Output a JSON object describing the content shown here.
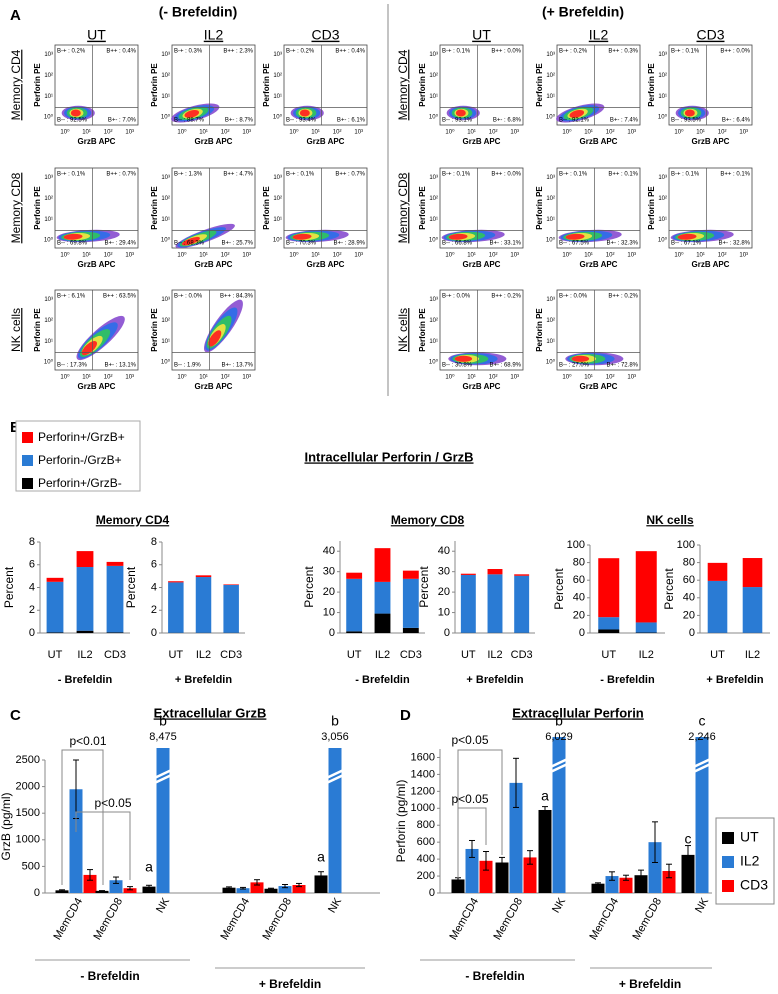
{
  "panel_a": {
    "label": "A",
    "conditions": [
      "(- Brefeldin)",
      "(+ Brefeldin)"
    ],
    "columns": [
      "UT",
      "IL2",
      "CD3"
    ],
    "rows": [
      "Memory CD4",
      "Memory CD8",
      "NK cells"
    ],
    "x_axis_label": "GrzB APC",
    "y_axis_label": "Perforin PE",
    "axis_ticks": [
      "10⁰",
      "10¹",
      "10²",
      "10³"
    ],
    "plots": [
      [
        [
          [
            "B-+ : 0.2%",
            "B++ : 0.4%",
            "B-- : 92.5%",
            "B+- : 7.0%"
          ],
          [
            "B-+ : 0.3%",
            "B++ : 2.3%",
            "B-- : 88.7%",
            "B+- : 8.7%"
          ],
          [
            "B-+ : 0.2%",
            "B++ : 0.4%",
            "B-- : 93.4%",
            "B+- : 6.1%"
          ]
        ],
        [
          [
            "B-+ : 0.1%",
            "B++ : 0.7%",
            "B-- : 69.8%",
            "B+- : 29.4%"
          ],
          [
            "B-+ : 1.3%",
            "B++ : 4.7%",
            "B-- : 68.3%",
            "B+- : 25.7%"
          ],
          [
            "B-+ : 0.1%",
            "B++ : 0.7%",
            "B-- : 70.3%",
            "B+- : 28.9%"
          ]
        ],
        [
          [
            "B-+ : 6.1%",
            "B++ : 63.5%",
            "B-- : 17.3%",
            "B+- : 13.1%"
          ],
          [
            "B-+ : 0.0%",
            "B++ : 84.3%",
            "B-- : 1.9%",
            "B+- : 13.7%"
          ]
        ]
      ],
      [
        [
          [
            "B-+ : 0.1%",
            "B++ : 0.0%",
            "B-- : 93.1%",
            "B+- : 6.8%"
          ],
          [
            "B-+ : 0.2%",
            "B++ : 0.3%",
            "B-- : 92.1%",
            "B+- : 7.4%"
          ],
          [
            "B-+ : 0.1%",
            "B++ : 0.0%",
            "B-- : 93.5%",
            "B+- : 6.4%"
          ]
        ],
        [
          [
            "B-+ : 0.1%",
            "B++ : 0.0%",
            "B-- : 66.8%",
            "B+- : 33.1%"
          ],
          [
            "B-+ : 0.1%",
            "B++ : 0.1%",
            "B-- : 67.5%",
            "B+- : 32.3%"
          ],
          [
            "B-+ : 0.1%",
            "B++ : 0.1%",
            "B-- : 67.1%",
            "B+- : 32.8%"
          ]
        ],
        [
          [
            "B-+ : 0.0%",
            "B++ : 0.2%",
            "B-- : 30.8%",
            "B+- : 68.9%"
          ],
          [
            "B-+ : 0.0%",
            "B++ : 0.2%",
            "B-- : 27.0%",
            "B+- : 72.8%"
          ]
        ]
      ]
    ]
  },
  "panel_b": {
    "label": "B",
    "title": "Intracellular Perforin / GrzB"
  },
  "chart_data": [
    {
      "type": "stacked_bar",
      "title": "Memory CD4",
      "categories": [
        "UT",
        "IL2",
        "CD3"
      ],
      "xlabel": "- Brefeldin",
      "ylabel": "Percent",
      "ylim": [
        0,
        8
      ],
      "yticks": [
        0,
        2,
        4,
        6,
        8
      ],
      "series": [
        {
          "name": "Perforin+/GrzB-",
          "color": "#000000",
          "values": [
            0.05,
            0.2,
            0.05
          ]
        },
        {
          "name": "Perforin-/GrzB+",
          "color": "#2a7bd4",
          "values": [
            4.45,
            5.6,
            5.85
          ]
        },
        {
          "name": "Perforin+/GrzB+",
          "color": "#ff0000",
          "values": [
            0.35,
            1.4,
            0.35
          ]
        }
      ]
    },
    {
      "type": "stacked_bar",
      "categories": [
        "UT",
        "IL2",
        "CD3"
      ],
      "xlabel": "+ Brefeldin",
      "ylabel": "Percent",
      "ylim": [
        0,
        8
      ],
      "yticks": [
        0,
        2,
        4,
        6,
        8
      ],
      "series": [
        {
          "color": "#000000",
          "values": [
            0.02,
            0.02,
            0.02
          ]
        },
        {
          "color": "#2a7bd4",
          "values": [
            4.43,
            4.9,
            4.2
          ]
        },
        {
          "color": "#ff0000",
          "values": [
            0.1,
            0.15,
            0.05
          ]
        }
      ]
    },
    {
      "type": "stacked_bar",
      "title": "Memory CD8",
      "categories": [
        "UT",
        "IL2",
        "CD3"
      ],
      "xlabel": "- Brefeldin",
      "ylabel": "Percent",
      "ylim": [
        0,
        45
      ],
      "yticks": [
        0,
        10,
        20,
        30,
        40
      ],
      "series": [
        {
          "color": "#000000",
          "values": [
            0.8,
            9.5,
            2.5
          ]
        },
        {
          "color": "#2a7bd4",
          "values": [
            25.7,
            15.5,
            24
          ]
        },
        {
          "color": "#ff0000",
          "values": [
            3,
            16.5,
            4
          ]
        }
      ]
    },
    {
      "type": "stacked_bar",
      "categories": [
        "UT",
        "IL2",
        "CD3"
      ],
      "xlabel": "+ Brefeldin",
      "ylabel": "Percent",
      "ylim": [
        0,
        45
      ],
      "yticks": [
        0,
        10,
        20,
        30,
        40
      ],
      "series": [
        {
          "color": "#000000",
          "values": [
            0.1,
            0.1,
            0.1
          ]
        },
        {
          "color": "#2a7bd4",
          "values": [
            28.3,
            28.6,
            27.9
          ]
        },
        {
          "color": "#ff0000",
          "values": [
            0.6,
            2.6,
            0.7
          ]
        }
      ]
    },
    {
      "type": "stacked_bar",
      "title": "NK cells",
      "categories": [
        "UT",
        "IL2"
      ],
      "xlabel": "- Brefeldin",
      "ylabel": "Percent",
      "ylim": [
        0,
        100
      ],
      "yticks": [
        0,
        20,
        40,
        60,
        80,
        100
      ],
      "series": [
        {
          "color": "#000000",
          "values": [
            4,
            0.5
          ]
        },
        {
          "color": "#2a7bd4",
          "values": [
            14,
            11.5
          ]
        },
        {
          "color": "#ff0000",
          "values": [
            67,
            81
          ]
        }
      ]
    },
    {
      "type": "stacked_bar",
      "categories": [
        "UT",
        "IL2"
      ],
      "xlabel": "+ Brefeldin",
      "ylabel": "Percent",
      "ylim": [
        0,
        100
      ],
      "yticks": [
        0,
        20,
        40,
        60,
        80,
        100
      ],
      "series": [
        {
          "color": "#000000",
          "values": [
            0.2,
            0.2
          ]
        },
        {
          "color": "#2a7bd4",
          "values": [
            59,
            52
          ]
        },
        {
          "color": "#ff0000",
          "values": [
            20.5,
            33
          ]
        }
      ]
    },
    {
      "type": "grouped_bar",
      "panel": "C",
      "title": "Extracellular GrzB",
      "ylabel": "GrzB (pg/ml)",
      "categories": [
        "MemCD4",
        "MemCD8",
        "NK",
        "MemCD4",
        "MemCD8",
        "NK"
      ],
      "groups": [
        "- Brefeldin",
        "+ Brefeldin"
      ],
      "ylim": [
        0,
        2500
      ],
      "yticks": [
        0,
        500,
        1000,
        1500,
        2000,
        2500
      ],
      "series": [
        {
          "color": "#000000",
          "values": [
            50,
            40,
            120,
            100,
            80,
            330
          ],
          "errors": [
            10,
            5,
            25,
            15,
            10,
            70
          ]
        },
        {
          "color": "#2a7bd4",
          "values": [
            1950,
            240,
            8475,
            90,
            130,
            3056
          ],
          "errors": [
            550,
            60,
            null,
            15,
            30,
            null
          ],
          "value_labels": [
            null,
            null,
            "8,475",
            null,
            null,
            "3,056"
          ]
        },
        {
          "color": "#ff0000",
          "values": [
            340,
            90,
            null,
            200,
            150,
            null
          ],
          "errors": [
            100,
            30,
            null,
            50,
            30,
            null
          ]
        }
      ],
      "annotations": [
        "p<0.01",
        "p<0.05",
        "a",
        "b",
        "a",
        "b"
      ]
    },
    {
      "type": "grouped_bar",
      "panel": "D",
      "title": "Extracellular Perforin",
      "ylabel": "Perforin (pg/ml)",
      "categories": [
        "MemCD4",
        "MemCD8",
        "NK",
        "MemCD4",
        "MemCD8",
        "NK"
      ],
      "groups": [
        "- Brefeldin",
        "+ Brefeldin"
      ],
      "ylim": [
        0,
        1700
      ],
      "yticks": [
        0,
        200,
        400,
        600,
        800,
        1000,
        1200,
        1400,
        1600
      ],
      "series": [
        {
          "name": "UT",
          "color": "#000000",
          "values": [
            160,
            360,
            980,
            110,
            210,
            450
          ],
          "errors": [
            20,
            60,
            40,
            10,
            60,
            110
          ]
        },
        {
          "name": "IL2",
          "color": "#2a7bd4",
          "values": [
            520,
            1300,
            6029,
            200,
            600,
            2246
          ],
          "errors": [
            100,
            290,
            null,
            50,
            240,
            null
          ],
          "value_labels": [
            null,
            null,
            "6,029",
            null,
            null,
            "2,246"
          ]
        },
        {
          "name": "CD3",
          "color": "#ff0000",
          "values": [
            380,
            420,
            null,
            180,
            260,
            null
          ],
          "errors": [
            110,
            80,
            null,
            30,
            80,
            null
          ]
        }
      ],
      "annotations": [
        "p<0.05",
        "p<0.05",
        "a",
        "b",
        "c",
        "c"
      ]
    }
  ]
}
